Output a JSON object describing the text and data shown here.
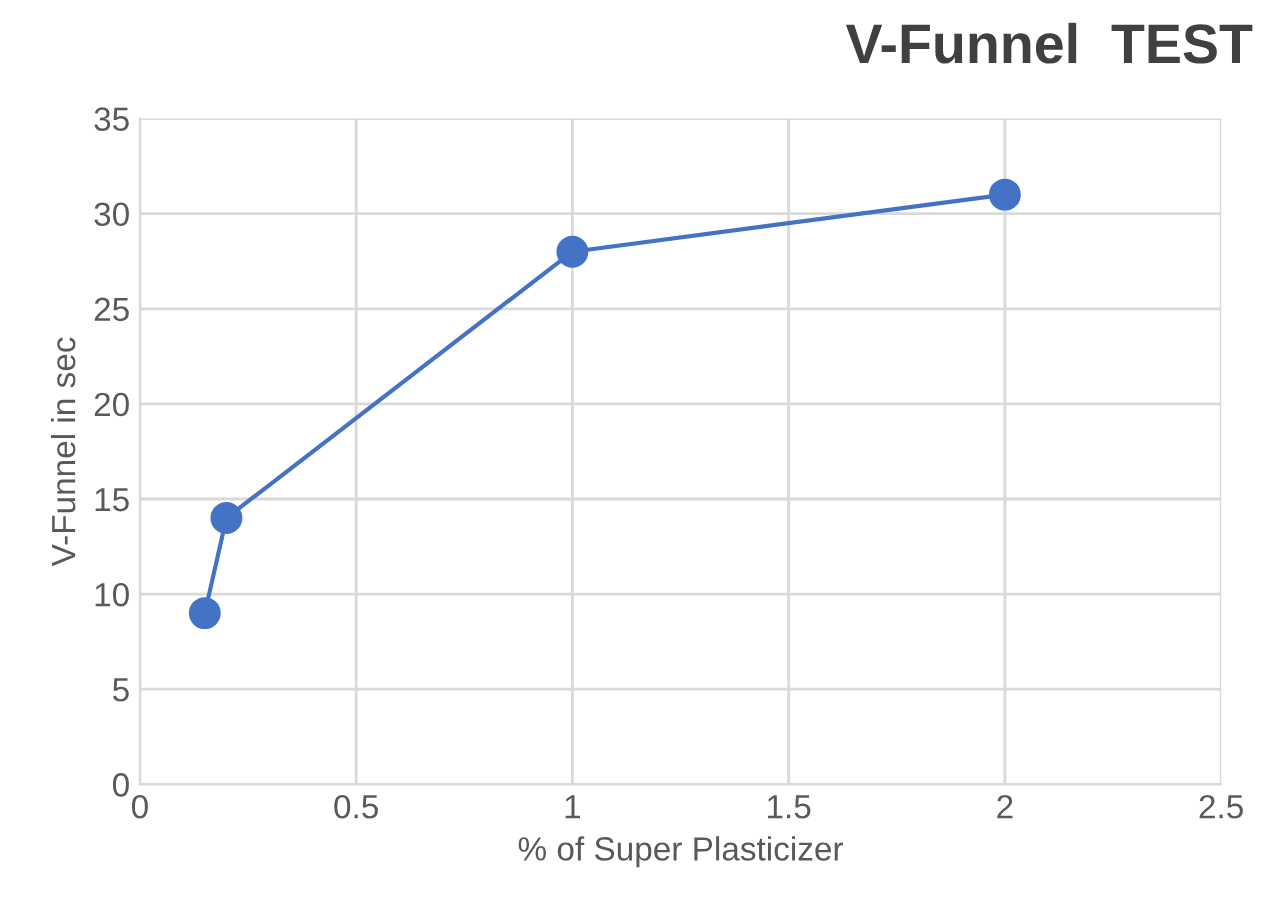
{
  "chart_data": {
    "type": "line",
    "title": "V-Funnel  TEST",
    "xlabel": "% of Super Plasticizer",
    "ylabel": "V-Funnel in sec",
    "series": [
      {
        "color": "#4472c4",
        "x": [
          0.15,
          0.2,
          1,
          2
        ],
        "values": [
          9,
          14,
          28,
          31
        ]
      }
    ],
    "line_style": "solid",
    "marker": "circle",
    "xlim": [
      0,
      2.5
    ],
    "xticks": [
      0,
      {
        "value": 0.5,
        "label": "0.5"
      },
      1,
      {
        "value": 1.5,
        "label": "1.5"
      },
      2,
      {
        "value": 2.5,
        "label": "2.5"
      }
    ],
    "ylim": [
      0,
      35
    ],
    "yticks": [
      0,
      5,
      10,
      15,
      20,
      25,
      30,
      35
    ],
    "grid": true
  }
}
